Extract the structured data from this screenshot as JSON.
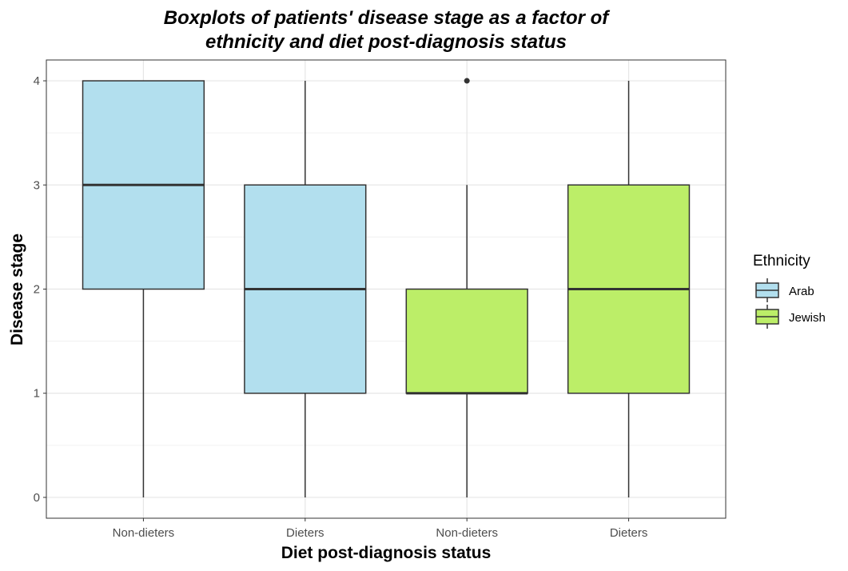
{
  "chart_data": {
    "type": "boxplot",
    "title": "Boxplots of patients' disease stage as a factor of ethnicity and diet post-diagnosis status",
    "title_lines": [
      "Boxplots of patients' disease stage as a factor of",
      "ethnicity and diet post-diagnosis status"
    ],
    "xlabel": "Diet post-diagnosis status",
    "ylabel": "Disease stage",
    "categories": [
      "Non-dieters",
      "Dieters",
      "Non-dieters",
      "Dieters"
    ],
    "ylim": [
      -0.2,
      4.2
    ],
    "yticks": [
      0,
      1,
      2,
      3,
      4
    ],
    "grid": true,
    "legend": {
      "title": "Ethnicity",
      "position": "right",
      "entries": [
        {
          "name": "Arab",
          "color": "#B2DFEE"
        },
        {
          "name": "Jewish",
          "color": "#BCEE68"
        }
      ]
    },
    "boxes": [
      {
        "category": "Non-dieters",
        "group": "Arab",
        "min": 0,
        "q1": 2,
        "median": 3,
        "q3": 4,
        "max": 4,
        "outliers": []
      },
      {
        "category": "Dieters",
        "group": "Arab",
        "min": 0,
        "q1": 1,
        "median": 2,
        "q3": 3,
        "max": 4,
        "outliers": []
      },
      {
        "category": "Non-dieters",
        "group": "Jewish",
        "min": 0,
        "q1": 1,
        "median": 1,
        "q3": 2,
        "max": 3,
        "outliers": [
          4
        ]
      },
      {
        "category": "Dieters",
        "group": "Jewish",
        "min": 0,
        "q1": 1,
        "median": 2,
        "q3": 3,
        "max": 4,
        "outliers": []
      }
    ]
  }
}
